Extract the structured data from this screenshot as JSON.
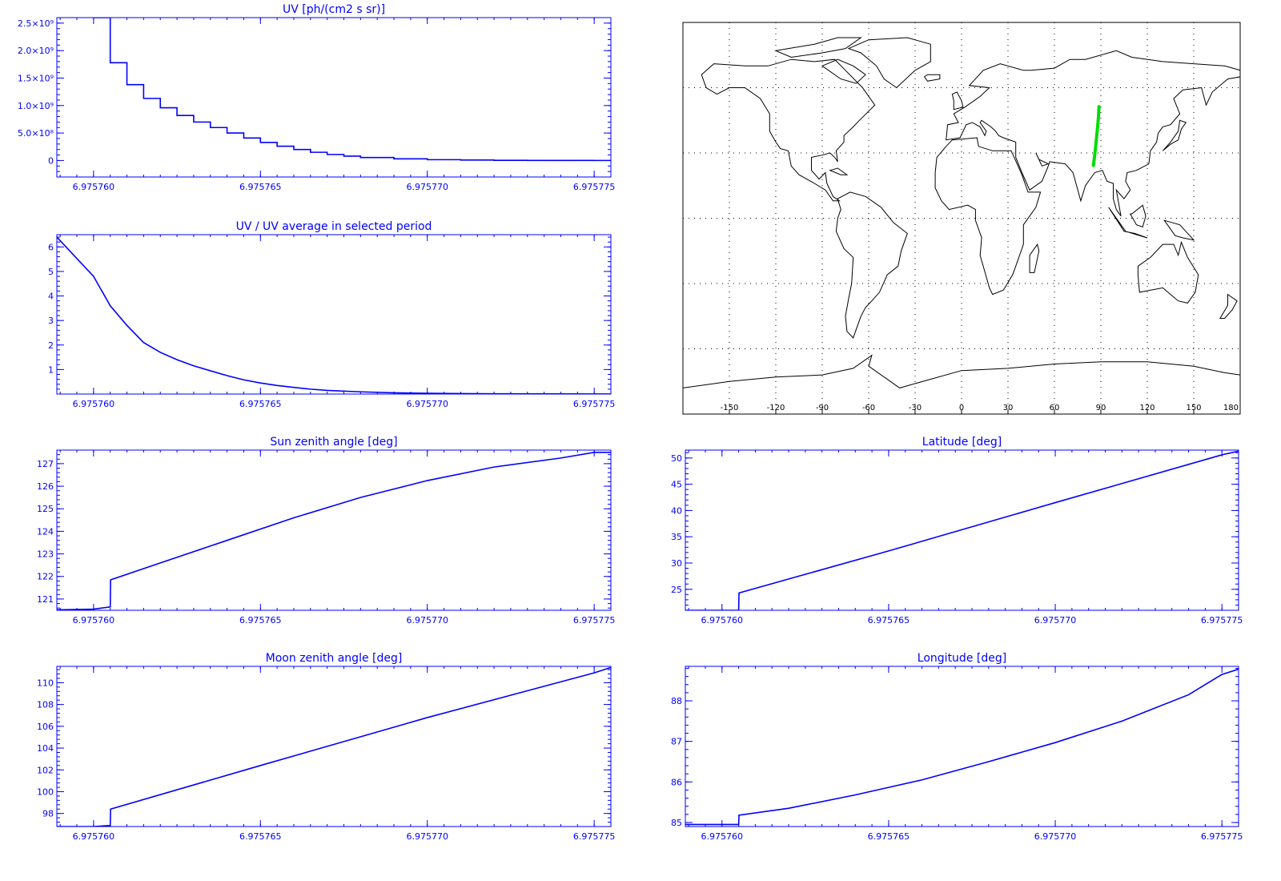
{
  "colors": {
    "axis": "#0000ff",
    "line": "#0000ff",
    "track": "#00dd00",
    "coast": "#000000",
    "grid": "#000000"
  },
  "chart_data": [
    {
      "id": "uv",
      "type": "line",
      "title": "UV [ph/(cm2 s sr)]",
      "xlim": [
        6.9757589,
        6.9757755
      ],
      "ylim": [
        -300000000,
        2600000000
      ],
      "xticks": [
        6.97576,
        6.975765,
        6.97577,
        6.975775
      ],
      "xtick_labels": [
        "6.975760",
        "6.975765",
        "6.975770",
        "6.975775"
      ],
      "yticks": [
        0,
        500000000,
        1000000000,
        1500000000,
        2000000000,
        2500000000
      ],
      "ytick_labels": [
        "0",
        "5.0×10⁸",
        "1.0×10⁹",
        "1.5×10⁹",
        "2.0×10⁹",
        "2.5×10⁹"
      ],
      "step": true,
      "series": [
        {
          "x": [
            6.97576,
            6.9757605,
            6.975761,
            6.9757615,
            6.975762,
            6.9757625,
            6.975763,
            6.9757635,
            6.975764,
            6.9757645,
            6.975765,
            6.9757655,
            6.975766,
            6.9757665,
            6.975767,
            6.9757675,
            6.975768,
            6.975769,
            6.97577,
            6.975771,
            6.975772,
            6.975773,
            6.975774,
            6.975775,
            6.9757755
          ],
          "y": [
            2600000000,
            1780000000,
            1380000000,
            1130000000,
            960000000,
            820000000,
            700000000,
            600000000,
            500000000,
            410000000,
            330000000,
            260000000,
            200000000,
            150000000,
            110000000,
            80000000,
            55000000,
            30000000,
            15000000,
            8000000,
            4000000,
            2000000,
            1000000,
            500000,
            400000
          ]
        }
      ]
    },
    {
      "id": "uvratio",
      "type": "line",
      "title": "UV / UV average in selected period",
      "xlim": [
        6.9757589,
        6.9757755
      ],
      "ylim": [
        0,
        6.5
      ],
      "xticks": [
        6.97576,
        6.975765,
        6.97577,
        6.975775
      ],
      "xtick_labels": [
        "6.975760",
        "6.975765",
        "6.975770",
        "6.975775"
      ],
      "yticks": [
        1,
        2,
        3,
        4,
        5,
        6
      ],
      "ytick_labels": [
        "1",
        "2",
        "3",
        "4",
        "5",
        "6"
      ],
      "series": [
        {
          "x": [
            6.9757589,
            6.97576,
            6.9757605,
            6.975761,
            6.9757615,
            6.975762,
            6.9757625,
            6.975763,
            6.9757635,
            6.975764,
            6.9757645,
            6.975765,
            6.9757655,
            6.975766,
            6.9757665,
            6.975767,
            6.975768,
            6.975769,
            6.97577,
            6.975771,
            6.975772,
            6.975774,
            6.9757755
          ],
          "y": [
            6.4,
            4.8,
            3.6,
            2.8,
            2.1,
            1.7,
            1.4,
            1.15,
            0.95,
            0.75,
            0.58,
            0.45,
            0.35,
            0.27,
            0.2,
            0.15,
            0.09,
            0.05,
            0.03,
            0.02,
            0.01,
            0.005,
            0.003
          ]
        }
      ]
    },
    {
      "id": "sza",
      "type": "line",
      "title": "Sun zenith angle [deg]",
      "xlim": [
        6.9757589,
        6.9757755
      ],
      "ylim": [
        120.5,
        127.6
      ],
      "xticks": [
        6.97576,
        6.975765,
        6.97577,
        6.975775
      ],
      "xtick_labels": [
        "6.975760",
        "6.975765",
        "6.975770",
        "6.975775"
      ],
      "yticks": [
        121,
        122,
        123,
        124,
        125,
        126,
        127
      ],
      "ytick_labels": [
        "121",
        "122",
        "123",
        "124",
        "125",
        "126",
        "127"
      ],
      "series": [
        {
          "x": [
            6.9757589,
            6.97576,
            6.9757605,
            6.97576051,
            6.975762,
            6.975764,
            6.975766,
            6.975768,
            6.97577,
            6.975772,
            6.975774,
            6.975775,
            6.9757755
          ],
          "y": [
            120.52,
            120.55,
            120.65,
            121.85,
            122.6,
            123.6,
            124.6,
            125.5,
            126.25,
            126.85,
            127.25,
            127.5,
            127.5
          ]
        }
      ]
    },
    {
      "id": "lat",
      "type": "line",
      "title": "Latitude [deg]",
      "xlim": [
        6.9757589,
        6.9757755
      ],
      "ylim": [
        21,
        51.5
      ],
      "xticks": [
        6.97576,
        6.975765,
        6.97577,
        6.975775
      ],
      "xtick_labels": [
        "6.975760",
        "6.975765",
        "6.975770",
        "6.975775"
      ],
      "yticks": [
        25,
        30,
        35,
        40,
        45,
        50
      ],
      "ytick_labels": [
        "25",
        "30",
        "35",
        "40",
        "45",
        "50"
      ],
      "series": [
        {
          "x": [
            6.9757589,
            6.97576,
            6.9757605,
            6.97576051,
            6.975765,
            6.97577,
            6.975775,
            6.9757755
          ],
          "y": [
            21,
            21,
            21,
            24.3,
            32.3,
            41.5,
            50.6,
            51.3
          ]
        }
      ]
    },
    {
      "id": "mza",
      "type": "line",
      "title": "Moon zenith angle [deg]",
      "xlim": [
        6.9757589,
        6.9757755
      ],
      "ylim": [
        96.8,
        111.5
      ],
      "xticks": [
        6.97576,
        6.975765,
        6.97577,
        6.975775
      ],
      "xtick_labels": [
        "6.975760",
        "6.975765",
        "6.975770",
        "6.975775"
      ],
      "yticks": [
        98,
        100,
        102,
        104,
        106,
        108,
        110
      ],
      "ytick_labels": [
        "98",
        "100",
        "102",
        "104",
        "106",
        "108",
        "110"
      ],
      "series": [
        {
          "x": [
            6.9757589,
            6.97576,
            6.9757605,
            6.97576051,
            6.975765,
            6.97577,
            6.975775,
            6.9757755
          ],
          "y": [
            96.8,
            96.8,
            96.9,
            98.4,
            102.4,
            106.8,
            110.9,
            111.4
          ]
        }
      ]
    },
    {
      "id": "lon",
      "type": "line",
      "title": "Longitude [deg]",
      "xlim": [
        6.9757589,
        6.9757755
      ],
      "ylim": [
        84.9,
        88.85
      ],
      "xticks": [
        6.97576,
        6.975765,
        6.97577,
        6.975775
      ],
      "xtick_labels": [
        "6.975760",
        "6.975765",
        "6.975770",
        "6.975775"
      ],
      "yticks": [
        85,
        86,
        87,
        88
      ],
      "ytick_labels": [
        "85",
        "86",
        "87",
        "88"
      ],
      "series": [
        {
          "x": [
            6.9757589,
            6.97576,
            6.9757605,
            6.97576051,
            6.975762,
            6.975764,
            6.975766,
            6.975768,
            6.97577,
            6.975772,
            6.975774,
            6.975775,
            6.9757755
          ],
          "y": [
            84.95,
            84.95,
            84.95,
            85.18,
            85.35,
            85.68,
            86.05,
            86.5,
            86.97,
            87.5,
            88.15,
            88.65,
            88.78
          ]
        }
      ]
    },
    {
      "id": "map",
      "type": "scatter",
      "xlim": [
        -180,
        180
      ],
      "ylim": [
        -90,
        90
      ],
      "xticks": [
        -150,
        -120,
        -90,
        -60,
        -30,
        0,
        30,
        60,
        90,
        120,
        150,
        180
      ],
      "xtick_labels": [
        "-150",
        "-120",
        "-90",
        "-60",
        "-30",
        "0",
        "30",
        "60",
        "90",
        "120",
        "150",
        "180"
      ],
      "gridlines_lat": [
        -60,
        -30,
        0,
        30,
        60
      ],
      "series": [
        {
          "x": [
            85.2,
            86.0,
            86.8,
            87.6,
            88.4,
            88.8
          ],
          "y": [
            24.3,
            29.0,
            34.0,
            40.0,
            46.0,
            51.3
          ]
        }
      ]
    }
  ]
}
